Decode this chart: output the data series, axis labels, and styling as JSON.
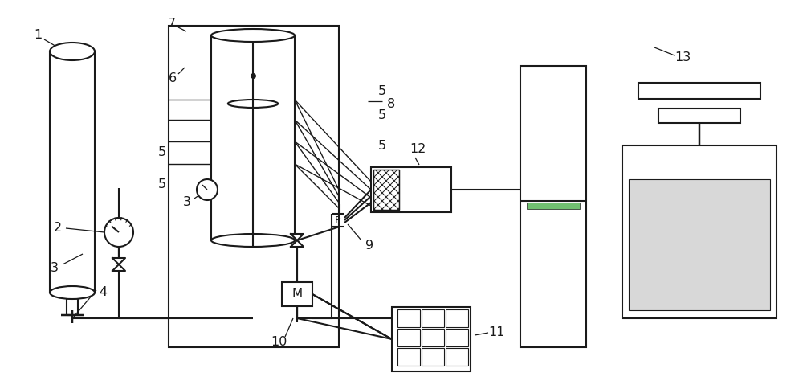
{
  "bg": "#ffffff",
  "lc": "#1a1a1a",
  "lw": 1.5,
  "fig_w": 10.0,
  "fig_h": 4.84,
  "dpi": 100
}
